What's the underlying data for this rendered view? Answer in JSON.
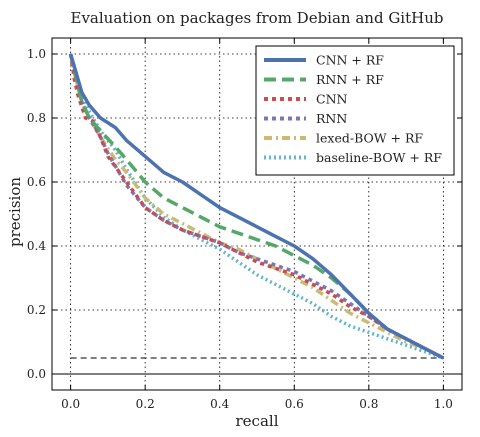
{
  "chart_data": {
    "type": "line",
    "title": "Evaluation on packages from Debian and GitHub",
    "xlabel": "recall",
    "ylabel": "precision",
    "xlim": [
      -0.05,
      1.05
    ],
    "ylim": [
      -0.05,
      1.05
    ],
    "xticks": [
      0.0,
      0.2,
      0.4,
      0.6,
      0.8,
      1.0
    ],
    "yticks": [
      0.0,
      0.2,
      0.4,
      0.6,
      0.8,
      1.0
    ],
    "xtick_labels": [
      "0.0",
      "0.2",
      "0.4",
      "0.6",
      "0.8",
      "1.0"
    ],
    "ytick_labels": [
      "0.0",
      "0.2",
      "0.4",
      "0.6",
      "0.8",
      "1.0"
    ],
    "grid": true,
    "legend_position": "top-right",
    "baseline_y": 0.05,
    "series": [
      {
        "name": "CNN + RF",
        "color": "#4c72b0",
        "dash": "solid",
        "x": [
          0.0,
          0.01,
          0.03,
          0.05,
          0.08,
          0.12,
          0.15,
          0.2,
          0.25,
          0.3,
          0.35,
          0.4,
          0.45,
          0.5,
          0.55,
          0.6,
          0.65,
          0.7,
          0.75,
          0.8,
          0.85,
          0.9,
          0.95,
          1.0
        ],
        "y": [
          1.0,
          0.96,
          0.88,
          0.84,
          0.8,
          0.77,
          0.73,
          0.68,
          0.63,
          0.6,
          0.56,
          0.52,
          0.49,
          0.46,
          0.43,
          0.4,
          0.36,
          0.31,
          0.25,
          0.19,
          0.14,
          0.11,
          0.08,
          0.05
        ]
      },
      {
        "name": "RNN + RF",
        "color": "#55a868",
        "dash": "long",
        "x": [
          0.0,
          0.01,
          0.03,
          0.05,
          0.08,
          0.12,
          0.15,
          0.2,
          0.25,
          0.3,
          0.35,
          0.4,
          0.45,
          0.5,
          0.55,
          0.6,
          0.65,
          0.7,
          0.75,
          0.8,
          0.85,
          0.9,
          0.95,
          1.0
        ],
        "y": [
          1.0,
          0.95,
          0.85,
          0.8,
          0.76,
          0.71,
          0.67,
          0.6,
          0.55,
          0.52,
          0.49,
          0.46,
          0.44,
          0.42,
          0.4,
          0.37,
          0.34,
          0.3,
          0.25,
          0.19,
          0.14,
          0.11,
          0.08,
          0.05
        ]
      },
      {
        "name": "CNN",
        "color": "#c44e52",
        "dash": "short",
        "x": [
          0.0,
          0.01,
          0.02,
          0.04,
          0.06,
          0.08,
          0.1,
          0.15,
          0.2,
          0.25,
          0.3,
          0.35,
          0.4,
          0.45,
          0.5,
          0.55,
          0.6,
          0.65,
          0.7,
          0.75,
          0.8,
          0.85,
          0.9,
          0.95,
          1.0
        ],
        "y": [
          1.0,
          0.92,
          0.87,
          0.8,
          0.79,
          0.74,
          0.68,
          0.6,
          0.52,
          0.48,
          0.45,
          0.43,
          0.41,
          0.38,
          0.35,
          0.33,
          0.31,
          0.28,
          0.25,
          0.21,
          0.18,
          0.14,
          0.11,
          0.08,
          0.05
        ]
      },
      {
        "name": "RNN",
        "color": "#8172b2",
        "dash": "short",
        "x": [
          0.0,
          0.01,
          0.03,
          0.05,
          0.08,
          0.1,
          0.15,
          0.2,
          0.25,
          0.3,
          0.35,
          0.4,
          0.45,
          0.5,
          0.55,
          0.6,
          0.65,
          0.7,
          0.75,
          0.8,
          0.85,
          0.9,
          0.95,
          1.0
        ],
        "y": [
          1.0,
          0.93,
          0.85,
          0.8,
          0.74,
          0.69,
          0.59,
          0.52,
          0.48,
          0.45,
          0.43,
          0.41,
          0.38,
          0.36,
          0.34,
          0.32,
          0.29,
          0.26,
          0.22,
          0.18,
          0.14,
          0.11,
          0.08,
          0.05
        ]
      },
      {
        "name": "lexed-BOW + RF",
        "color": "#ccb974",
        "dash": "dashdot",
        "x": [
          0.0,
          0.01,
          0.03,
          0.05,
          0.08,
          0.12,
          0.15,
          0.2,
          0.25,
          0.3,
          0.35,
          0.4,
          0.45,
          0.5,
          0.55,
          0.6,
          0.65,
          0.7,
          0.75,
          0.8,
          0.85,
          0.9,
          0.95,
          1.0
        ],
        "y": [
          1.0,
          0.94,
          0.85,
          0.8,
          0.74,
          0.67,
          0.63,
          0.55,
          0.5,
          0.47,
          0.44,
          0.41,
          0.39,
          0.36,
          0.33,
          0.3,
          0.27,
          0.23,
          0.19,
          0.16,
          0.13,
          0.1,
          0.08,
          0.05
        ]
      },
      {
        "name": "baseline-BOW + RF",
        "color": "#64b5cd",
        "dash": "dot",
        "x": [
          0.0,
          0.01,
          0.03,
          0.05,
          0.08,
          0.12,
          0.15,
          0.2,
          0.25,
          0.3,
          0.35,
          0.4,
          0.45,
          0.5,
          0.55,
          0.6,
          0.65,
          0.7,
          0.75,
          0.8,
          0.85,
          0.9,
          0.95,
          1.0
        ],
        "y": [
          1.0,
          0.95,
          0.87,
          0.82,
          0.76,
          0.7,
          0.64,
          0.55,
          0.49,
          0.45,
          0.42,
          0.39,
          0.35,
          0.31,
          0.28,
          0.25,
          0.22,
          0.18,
          0.15,
          0.13,
          0.11,
          0.09,
          0.07,
          0.05
        ]
      }
    ]
  }
}
